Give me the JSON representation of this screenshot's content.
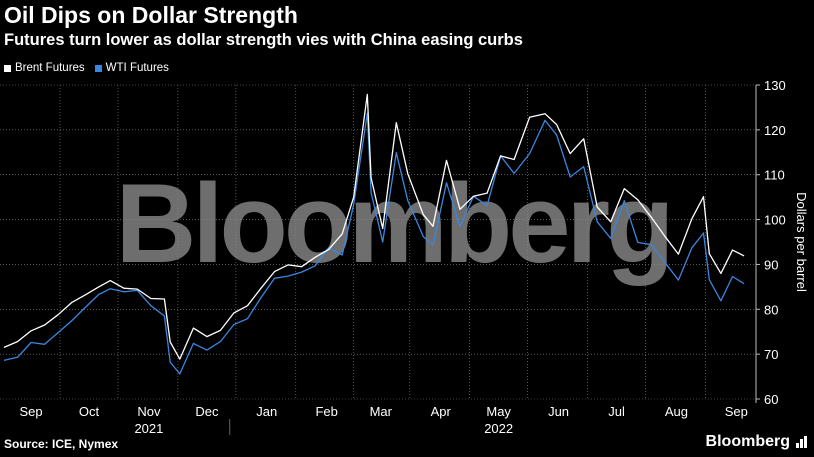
{
  "title": "Oil Dips on Dollar Strength",
  "subtitle": "Futures turn lower as dollar strength vies with China easing curbs",
  "legend": [
    {
      "label": "Brent Futures",
      "color": "#ffffff"
    },
    {
      "label": "WTI Futures",
      "color": "#3a86e0"
    }
  ],
  "source": "Source: ICE, Nymex",
  "brand": "Bloomberg",
  "watermark": "Bloomberg",
  "chart_data": {
    "type": "line",
    "ylabel": "Dollars per barrel",
    "ylim": [
      60,
      130
    ],
    "yticks": [
      60,
      70,
      80,
      90,
      100,
      110,
      120,
      130
    ],
    "grid": true,
    "y_axis_side": "right",
    "legend_position": "top-left",
    "xlim": [
      "2021-09-01",
      "2022-09-20"
    ],
    "x_month_ticks": [
      {
        "label": "Sep",
        "date": "2021-09-15"
      },
      {
        "label": "Oct",
        "date": "2021-10-15"
      },
      {
        "label": "Nov",
        "date": "2021-11-15"
      },
      {
        "label": "Dec",
        "date": "2021-12-15"
      },
      {
        "label": "Jan",
        "date": "2022-01-15"
      },
      {
        "label": "Feb",
        "date": "2022-02-15"
      },
      {
        "label": "Mar",
        "date": "2022-03-15"
      },
      {
        "label": "Apr",
        "date": "2022-04-15"
      },
      {
        "label": "May",
        "date": "2022-05-15"
      },
      {
        "label": "Jun",
        "date": "2022-06-15"
      },
      {
        "label": "Jul",
        "date": "2022-07-15"
      },
      {
        "label": "Aug",
        "date": "2022-08-15"
      },
      {
        "label": "Sep",
        "date": "2022-09-15"
      }
    ],
    "x_year_labels": [
      {
        "label": "2021",
        "date": "2021-11-15"
      },
      {
        "label": "2022",
        "date": "2022-05-15"
      }
    ],
    "series": [
      {
        "name": "Brent Futures",
        "color": "#ffffff",
        "points": [
          [
            "2021-09-01",
            71.5
          ],
          [
            "2021-09-08",
            72.8
          ],
          [
            "2021-09-15",
            75.2
          ],
          [
            "2021-09-22",
            76.5
          ],
          [
            "2021-09-29",
            78.8
          ],
          [
            "2021-10-06",
            81.5
          ],
          [
            "2021-10-13",
            83.2
          ],
          [
            "2021-10-20",
            85.0
          ],
          [
            "2021-10-26",
            86.4
          ],
          [
            "2021-11-02",
            84.7
          ],
          [
            "2021-11-09",
            84.5
          ],
          [
            "2021-11-16",
            82.4
          ],
          [
            "2021-11-23",
            82.3
          ],
          [
            "2021-11-26",
            72.7
          ],
          [
            "2021-12-01",
            68.9
          ],
          [
            "2021-12-08",
            75.8
          ],
          [
            "2021-12-15",
            73.9
          ],
          [
            "2021-12-22",
            75.3
          ],
          [
            "2021-12-29",
            79.2
          ],
          [
            "2022-01-05",
            80.8
          ],
          [
            "2022-01-12",
            84.7
          ],
          [
            "2022-01-19",
            88.4
          ],
          [
            "2022-01-26",
            89.9
          ],
          [
            "2022-02-02",
            89.5
          ],
          [
            "2022-02-09",
            91.6
          ],
          [
            "2022-02-16",
            93.3
          ],
          [
            "2022-02-23",
            96.8
          ],
          [
            "2022-03-01",
            105.0
          ],
          [
            "2022-03-08",
            127.9
          ],
          [
            "2022-03-10",
            109.3
          ],
          [
            "2022-03-16",
            98.0
          ],
          [
            "2022-03-23",
            121.6
          ],
          [
            "2022-03-29",
            110.2
          ],
          [
            "2022-04-06",
            101.1
          ],
          [
            "2022-04-11",
            98.5
          ],
          [
            "2022-04-18",
            113.2
          ],
          [
            "2022-04-25",
            102.3
          ],
          [
            "2022-05-02",
            105.2
          ],
          [
            "2022-05-09",
            105.9
          ],
          [
            "2022-05-16",
            114.2
          ],
          [
            "2022-05-23",
            113.4
          ],
          [
            "2022-05-31",
            122.8
          ],
          [
            "2022-06-08",
            123.6
          ],
          [
            "2022-06-14",
            121.2
          ],
          [
            "2022-06-21",
            114.7
          ],
          [
            "2022-06-28",
            118.0
          ],
          [
            "2022-07-05",
            102.8
          ],
          [
            "2022-07-12",
            99.5
          ],
          [
            "2022-07-19",
            106.9
          ],
          [
            "2022-07-26",
            104.4
          ],
          [
            "2022-08-02",
            100.5
          ],
          [
            "2022-08-09",
            96.3
          ],
          [
            "2022-08-16",
            92.3
          ],
          [
            "2022-08-23",
            100.2
          ],
          [
            "2022-08-29",
            105.1
          ],
          [
            "2022-09-01",
            92.4
          ],
          [
            "2022-09-07",
            88.0
          ],
          [
            "2022-09-13",
            93.2
          ],
          [
            "2022-09-19",
            91.9
          ]
        ]
      },
      {
        "name": "WTI Futures",
        "color": "#3a86e0",
        "points": [
          [
            "2021-09-01",
            68.6
          ],
          [
            "2021-09-08",
            69.3
          ],
          [
            "2021-09-15",
            72.6
          ],
          [
            "2021-09-22",
            72.2
          ],
          [
            "2021-09-29",
            74.8
          ],
          [
            "2021-10-06",
            77.4
          ],
          [
            "2021-10-13",
            80.4
          ],
          [
            "2021-10-20",
            83.3
          ],
          [
            "2021-10-26",
            84.6
          ],
          [
            "2021-11-02",
            83.9
          ],
          [
            "2021-11-09",
            84.2
          ],
          [
            "2021-11-16",
            80.8
          ],
          [
            "2021-11-23",
            78.5
          ],
          [
            "2021-11-26",
            68.2
          ],
          [
            "2021-12-01",
            65.6
          ],
          [
            "2021-12-08",
            72.4
          ],
          [
            "2021-12-15",
            70.9
          ],
          [
            "2021-12-22",
            72.8
          ],
          [
            "2021-12-29",
            76.6
          ],
          [
            "2022-01-05",
            77.9
          ],
          [
            "2022-01-12",
            82.6
          ],
          [
            "2022-01-19",
            86.9
          ],
          [
            "2022-01-26",
            87.4
          ],
          [
            "2022-02-02",
            88.3
          ],
          [
            "2022-02-09",
            89.7
          ],
          [
            "2022-02-16",
            93.7
          ],
          [
            "2022-02-23",
            92.1
          ],
          [
            "2022-03-01",
            103.4
          ],
          [
            "2022-03-08",
            123.7
          ],
          [
            "2022-03-10",
            106.0
          ],
          [
            "2022-03-16",
            95.0
          ],
          [
            "2022-03-23",
            114.9
          ],
          [
            "2022-03-29",
            104.2
          ],
          [
            "2022-04-06",
            96.2
          ],
          [
            "2022-04-11",
            94.3
          ],
          [
            "2022-04-18",
            108.2
          ],
          [
            "2022-04-25",
            98.5
          ],
          [
            "2022-05-02",
            105.2
          ],
          [
            "2022-05-09",
            103.1
          ],
          [
            "2022-05-16",
            114.2
          ],
          [
            "2022-05-23",
            110.3
          ],
          [
            "2022-05-31",
            114.7
          ],
          [
            "2022-06-08",
            122.1
          ],
          [
            "2022-06-14",
            118.9
          ],
          [
            "2022-06-21",
            109.5
          ],
          [
            "2022-06-28",
            111.8
          ],
          [
            "2022-07-05",
            99.5
          ],
          [
            "2022-07-12",
            95.8
          ],
          [
            "2022-07-19",
            104.2
          ],
          [
            "2022-07-26",
            94.9
          ],
          [
            "2022-08-02",
            94.4
          ],
          [
            "2022-08-09",
            90.5
          ],
          [
            "2022-08-16",
            86.5
          ],
          [
            "2022-08-23",
            93.7
          ],
          [
            "2022-08-29",
            97.0
          ],
          [
            "2022-09-01",
            86.6
          ],
          [
            "2022-09-07",
            81.9
          ],
          [
            "2022-09-13",
            87.3
          ],
          [
            "2022-09-19",
            85.7
          ]
        ]
      }
    ]
  }
}
